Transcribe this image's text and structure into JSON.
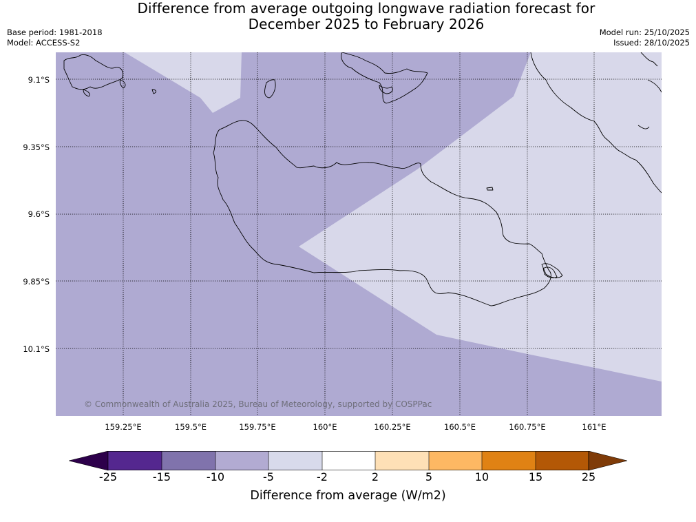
{
  "title": {
    "line1": "Difference from average outgoing longwave radiation forecast for",
    "line2": "December 2025 to February 2026"
  },
  "meta": {
    "base_period": "Base period: 1981-2018",
    "model": "Model: ACCESS-S2",
    "model_run": "Model run: 25/10/2025",
    "issued": "Issued: 28/10/2025"
  },
  "map": {
    "latitude_labels": [
      "9.1°S",
      "9.35°S",
      "9.6°S",
      "9.85°S",
      "10.1°S"
    ],
    "longitude_labels": [
      "159.25°E",
      "159.5°E",
      "159.75°E",
      "160°E",
      "160.25°E",
      "160.5°E",
      "160.75°E",
      "161°E"
    ],
    "copyright": "© Commonwealth of Australia 2025, Bureau of Meteorology, supported by COSPPac",
    "colors": {
      "neg_5_to_10": "#afaad2",
      "neg_2_to_5": "#d8d8ea",
      "coastline": "#000000",
      "gridline": "#000000"
    }
  },
  "colorbar": {
    "label": "Difference from average (W/m2)",
    "tick_labels": [
      "-25",
      "-15",
      "-10",
      "-5",
      "-2",
      "2",
      "5",
      "10",
      "15",
      "25"
    ],
    "bin_colors": [
      "#54278f",
      "#8073ac",
      "#b2abd2",
      "#d8daeb",
      "#ffffff",
      "#fee0b6",
      "#fdb863",
      "#e08214",
      "#b35806"
    ],
    "under_color": "#2d004b",
    "over_color": "#7f3b08"
  }
}
